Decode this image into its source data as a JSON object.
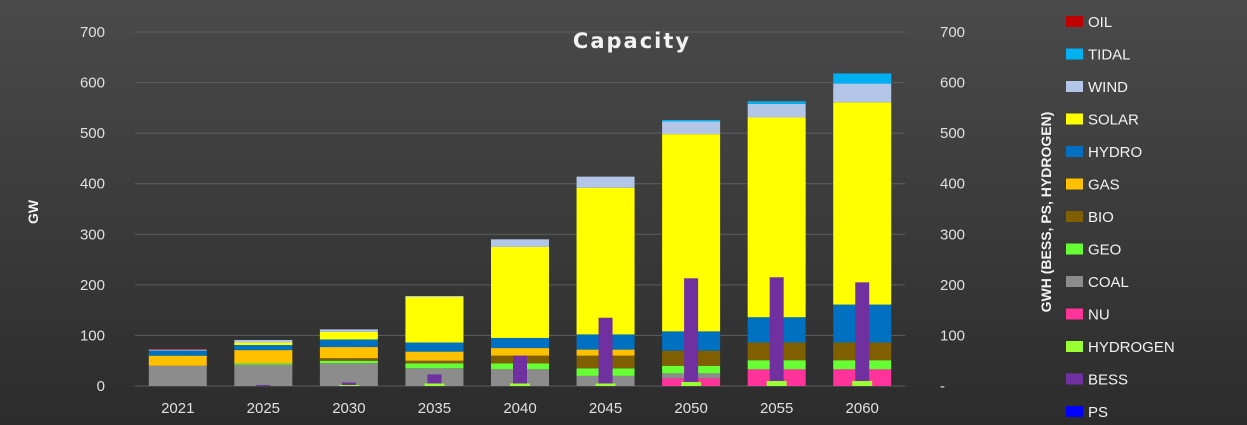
{
  "chart_data": {
    "type": "bar",
    "stacked": true,
    "title": "Capacity",
    "ylabel": "GW",
    "y2label": "GWH (BESS, PS, HYDROGEN)",
    "ylim": [
      0,
      700
    ],
    "y2lim": [
      0,
      700
    ],
    "yticks": [
      "0",
      "100",
      "200",
      "300",
      "400",
      "500",
      "600",
      "700"
    ],
    "y2ticks": [
      "-",
      "100",
      "200",
      "300",
      "400",
      "500",
      "600",
      "700"
    ],
    "grid": true,
    "legend_position": "right",
    "categories": [
      "2021",
      "2025",
      "2030",
      "2035",
      "2040",
      "2045",
      "2050",
      "2055",
      "2060"
    ],
    "series": [
      {
        "name": "NU",
        "axis": "primary",
        "color": "#ff3399",
        "values": [
          0,
          0,
          0,
          0,
          0,
          0,
          15,
          33,
          33
        ]
      },
      {
        "name": "COAL",
        "axis": "primary",
        "color": "#8c8c8c",
        "values": [
          40,
          42,
          45,
          35,
          33,
          20,
          10,
          0,
          0
        ]
      },
      {
        "name": "GEO",
        "axis": "primary",
        "color": "#66ff33",
        "values": [
          0,
          3,
          5,
          10,
          12,
          15,
          15,
          18,
          18
        ]
      },
      {
        "name": "BIO",
        "axis": "primary",
        "color": "#7f5f00",
        "values": [
          0,
          0,
          5,
          5,
          15,
          25,
          30,
          35,
          35
        ]
      },
      {
        "name": "GAS",
        "axis": "primary",
        "color": "#ffc000",
        "values": [
          20,
          26,
          22,
          18,
          15,
          12,
          0,
          0,
          0
        ]
      },
      {
        "name": "HYDRO",
        "axis": "primary",
        "color": "#0070c0",
        "values": [
          10,
          10,
          15,
          18,
          20,
          30,
          38,
          50,
          75
        ]
      },
      {
        "name": "SOLAR",
        "axis": "primary",
        "color": "#ffff00",
        "values": [
          0,
          5,
          15,
          90,
          180,
          290,
          390,
          395,
          400
        ]
      },
      {
        "name": "WIND",
        "axis": "primary",
        "color": "#b4c6e7",
        "values": [
          2,
          5,
          5,
          2,
          15,
          22,
          25,
          27,
          37
        ]
      },
      {
        "name": "TIDAL",
        "axis": "primary",
        "color": "#00b0f0",
        "values": [
          0,
          0,
          0,
          0,
          0,
          0,
          3,
          5,
          20
        ]
      },
      {
        "name": "OIL",
        "axis": "primary",
        "color": "#c00000",
        "values": [
          1,
          0,
          0,
          0,
          0,
          0,
          0,
          0,
          0
        ]
      },
      {
        "name": "HYDROGEN",
        "axis": "secondary",
        "color": "#99ff33",
        "values": [
          0,
          0,
          2,
          5,
          5,
          5,
          8,
          10,
          10
        ]
      },
      {
        "name": "BESS",
        "axis": "secondary",
        "color": "#7030a0",
        "values": [
          0,
          2,
          5,
          18,
          55,
          130,
          205,
          205,
          195
        ]
      },
      {
        "name": "PS",
        "axis": "secondary",
        "color": "#0000ff",
        "values": [
          0,
          0,
          0,
          0,
          0,
          0,
          0,
          0,
          0
        ]
      }
    ],
    "legend": [
      "OIL",
      "TIDAL",
      "WIND",
      "SOLAR",
      "HYDRO",
      "GAS",
      "BIO",
      "GEO",
      "COAL",
      "NU",
      "HYDROGEN",
      "BESS",
      "PS"
    ],
    "colors": {
      "plot_background_top": "#4a4a4a",
      "plot_background_bottom": "#2c2c2c",
      "gridline": "#5e5e5e",
      "text": "#e0e0e0"
    }
  }
}
